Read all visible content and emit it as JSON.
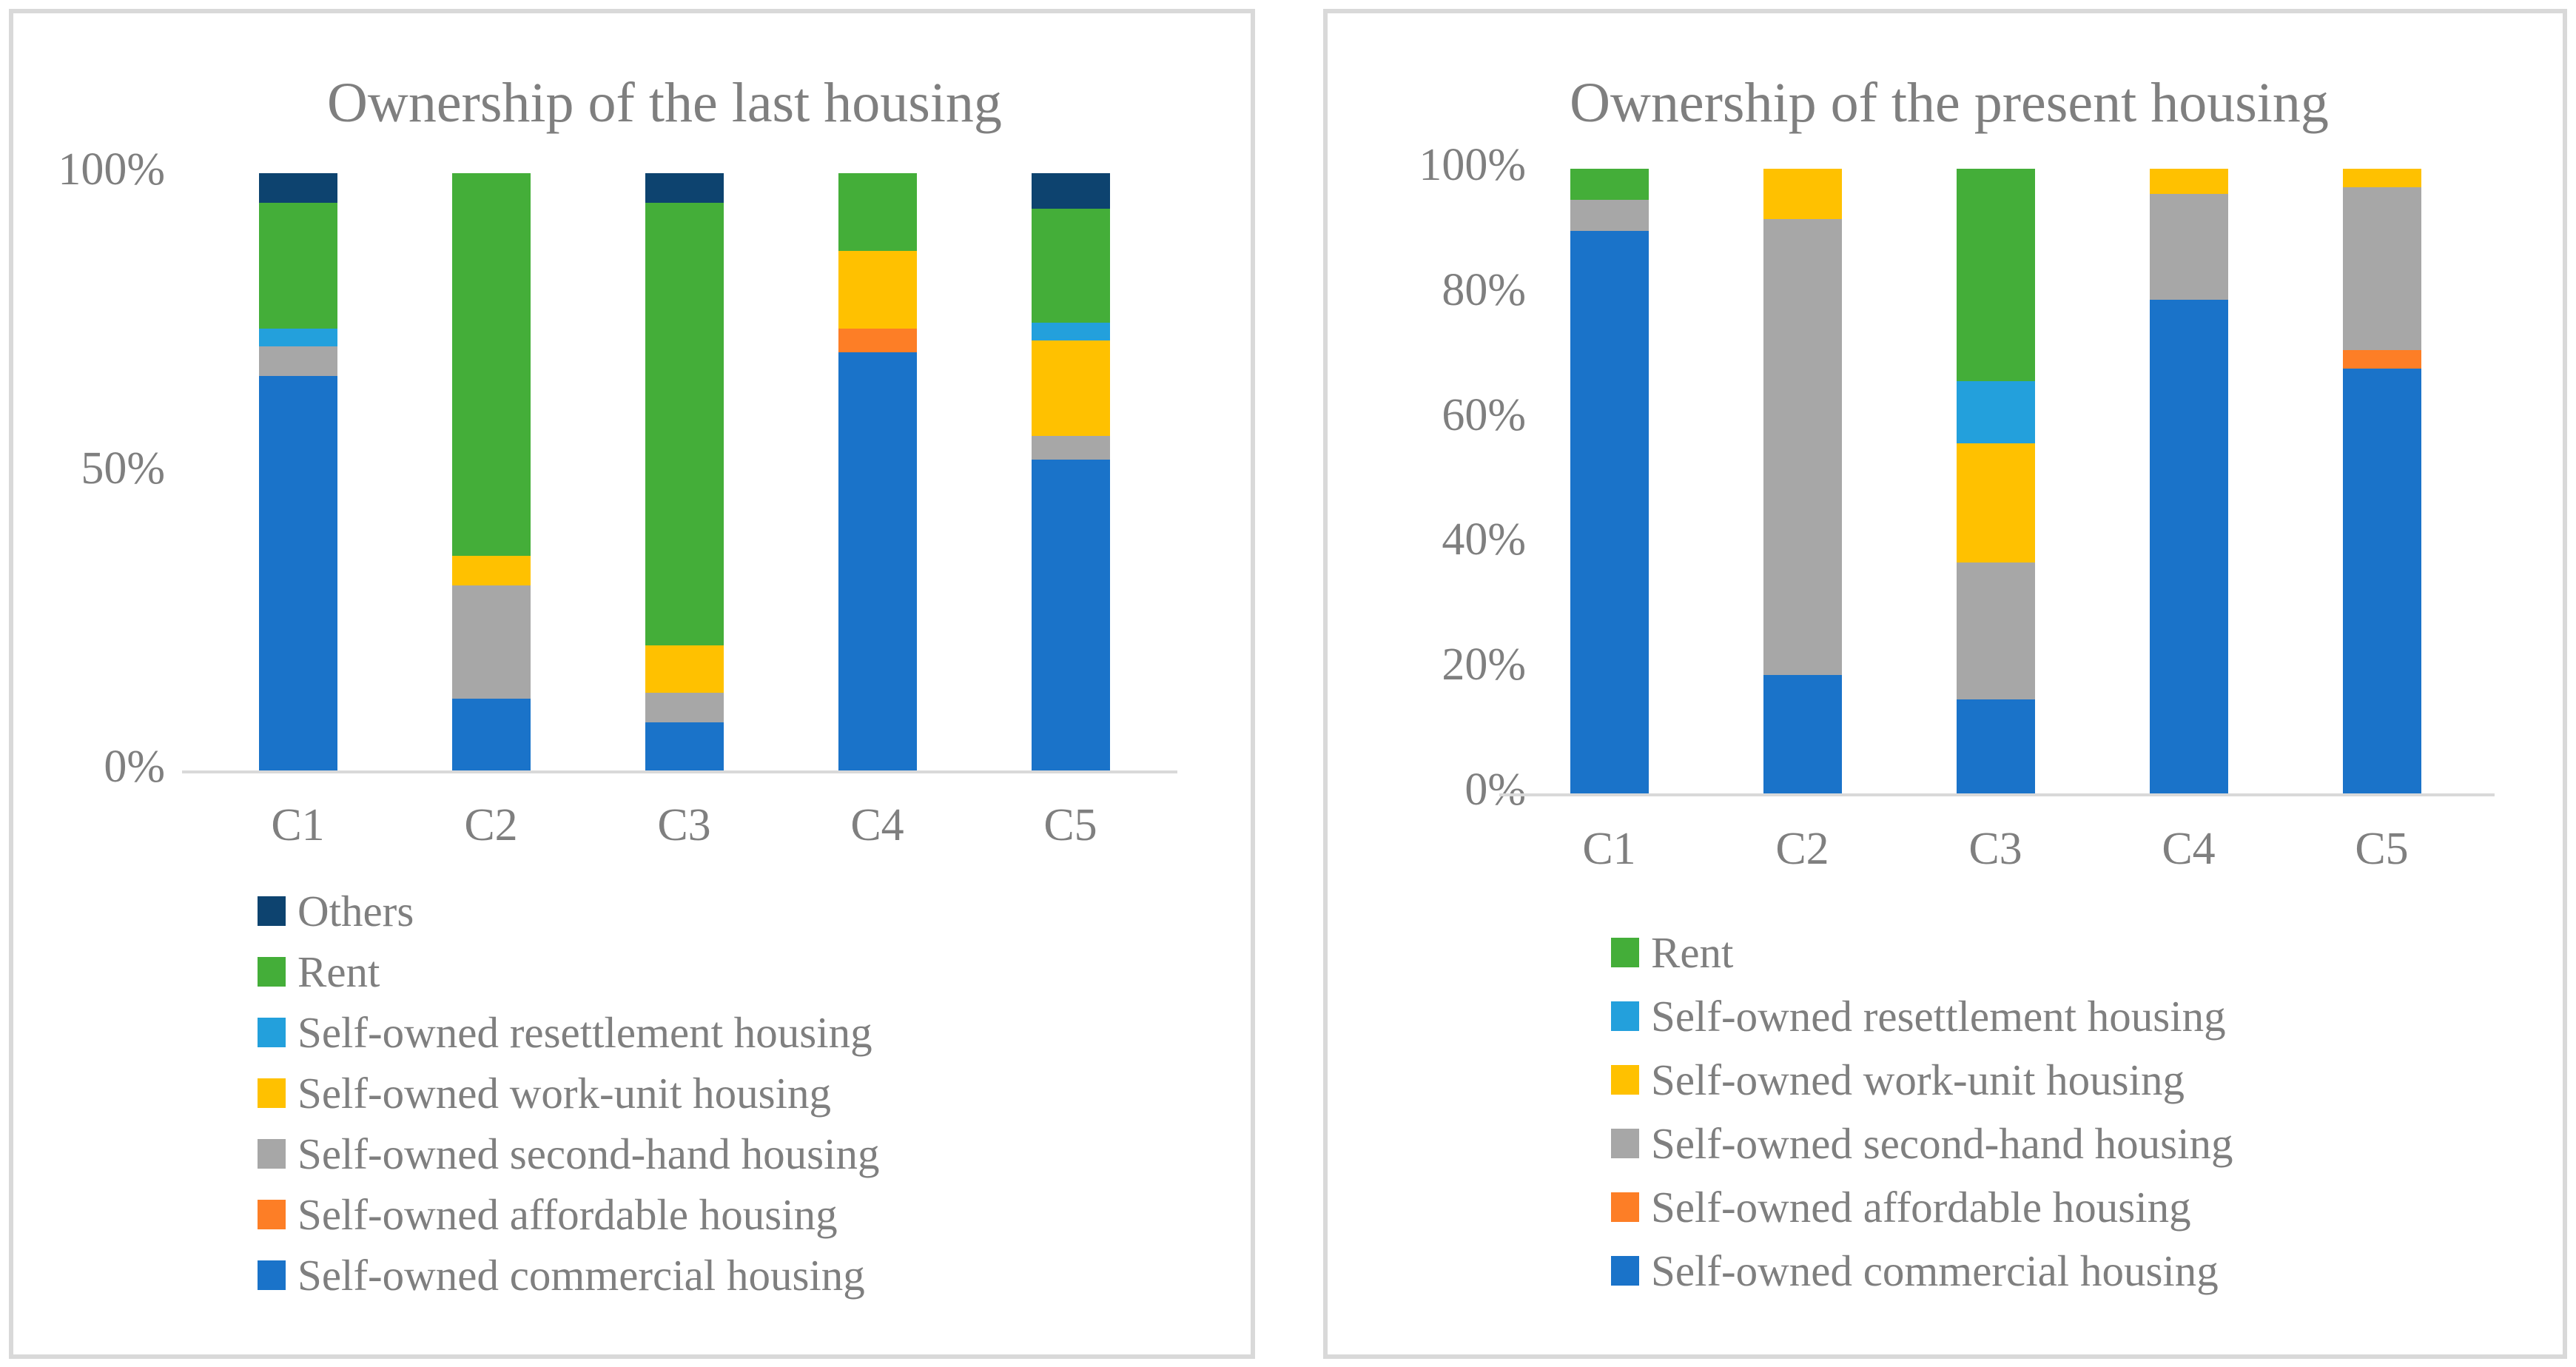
{
  "colors": {
    "commercial": "#1a73c9",
    "affordable": "#fd7e26",
    "second_hand": "#a7a7a7",
    "work_unit": "#ffc100",
    "resettlement": "#23a0dc",
    "rent": "#44ae39",
    "others": "#0d436f"
  },
  "axis_color": "#d9d9d9",
  "text_color": "#7f7f7f",
  "chart_data": [
    {
      "type": "bar",
      "stacked": true,
      "title": "Ownership of the last housing",
      "categories": [
        "C1",
        "C2",
        "C3",
        "C4",
        "C5"
      ],
      "xlabel": "",
      "ylabel": "",
      "ylim": [
        0,
        100
      ],
      "grid": false,
      "legend_position": "bottom-left",
      "y_ticks": [
        {
          "label": "100%",
          "value": 100
        },
        {
          "label": "50%",
          "value": 50
        },
        {
          "label": "0%",
          "value": 0
        }
      ],
      "series": [
        {
          "key": "commercial",
          "name": "Self-owned commercial housing",
          "values": [
            66,
            12,
            8,
            70,
            52
          ]
        },
        {
          "key": "affordable",
          "name": "Self-owned affordable housing",
          "values": [
            0,
            0,
            0,
            4,
            0
          ]
        },
        {
          "key": "second_hand",
          "name": "Self-owned second-hand housing",
          "values": [
            5,
            19,
            5,
            0,
            4
          ]
        },
        {
          "key": "work_unit",
          "name": "Self-owned work-unit housing",
          "values": [
            0,
            5,
            8,
            13,
            16
          ]
        },
        {
          "key": "resettlement",
          "name": "Self-owned resettlement housing",
          "values": [
            3,
            0,
            0,
            0,
            3
          ]
        },
        {
          "key": "rent",
          "name": "Rent",
          "values": [
            21,
            64,
            74,
            13,
            19
          ]
        },
        {
          "key": "others",
          "name": "Others",
          "values": [
            5,
            0,
            5,
            0,
            6
          ]
        }
      ],
      "legend_order": [
        "others",
        "rent",
        "resettlement",
        "work_unit",
        "second_hand",
        "affordable",
        "commercial"
      ]
    },
    {
      "type": "bar",
      "stacked": true,
      "title": "Ownership of the present housing",
      "categories": [
        "C1",
        "C2",
        "C3",
        "C4",
        "C5"
      ],
      "xlabel": "",
      "ylabel": "",
      "ylim": [
        0,
        100
      ],
      "grid": false,
      "legend_position": "bottom-left",
      "y_ticks": [
        {
          "label": "100%",
          "value": 100
        },
        {
          "label": "80%",
          "value": 80
        },
        {
          "label": "60%",
          "value": 60
        },
        {
          "label": "40%",
          "value": 40
        },
        {
          "label": "20%",
          "value": 20
        },
        {
          "label": "0%",
          "value": 0
        }
      ],
      "series": [
        {
          "key": "commercial",
          "name": "Self-owned commercial housing",
          "values": [
            90,
            19,
            15,
            79,
            68
          ]
        },
        {
          "key": "affordable",
          "name": "Self-owned affordable housing",
          "values": [
            0,
            0,
            0,
            0,
            3
          ]
        },
        {
          "key": "second_hand",
          "name": "Self-owned second-hand housing",
          "values": [
            5,
            73,
            22,
            17,
            26
          ]
        },
        {
          "key": "work_unit",
          "name": "Self-owned work-unit housing",
          "values": [
            0,
            8,
            19,
            4,
            3
          ]
        },
        {
          "key": "resettlement",
          "name": "Self-owned resettlement housing",
          "values": [
            0,
            0,
            10,
            0,
            0
          ]
        },
        {
          "key": "rent",
          "name": "Rent",
          "values": [
            5,
            0,
            34,
            0,
            0
          ]
        }
      ],
      "legend_order": [
        "rent",
        "resettlement",
        "work_unit",
        "second_hand",
        "affordable",
        "commercial"
      ]
    }
  ]
}
